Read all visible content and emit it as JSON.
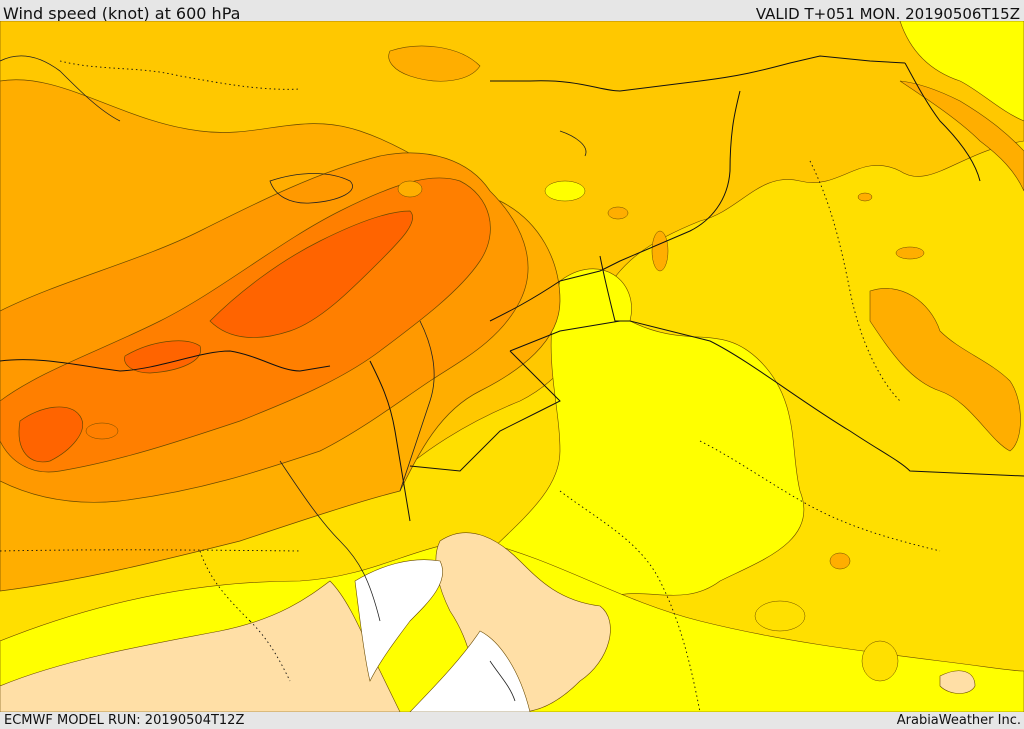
{
  "header": {
    "title": "Wind speed (knot) at 600 hPa",
    "valid_time": "VALID T+051 MON. 20190506T15Z"
  },
  "footer": {
    "model_run": "ECMWF MODEL RUN: 20190504T12Z",
    "credit": "ArabiaWeather Inc."
  },
  "map": {
    "colors": {
      "pale": "#ffdfa6",
      "white": "#ffffff",
      "yellow_bright": "#ffff00",
      "yellow": "#ffe000",
      "gold": "#ffc800",
      "amber": "#ffae00",
      "orange": "#ff9900",
      "dark_orange": "#ff7f00",
      "red_orange": "#ff6400"
    }
  }
}
